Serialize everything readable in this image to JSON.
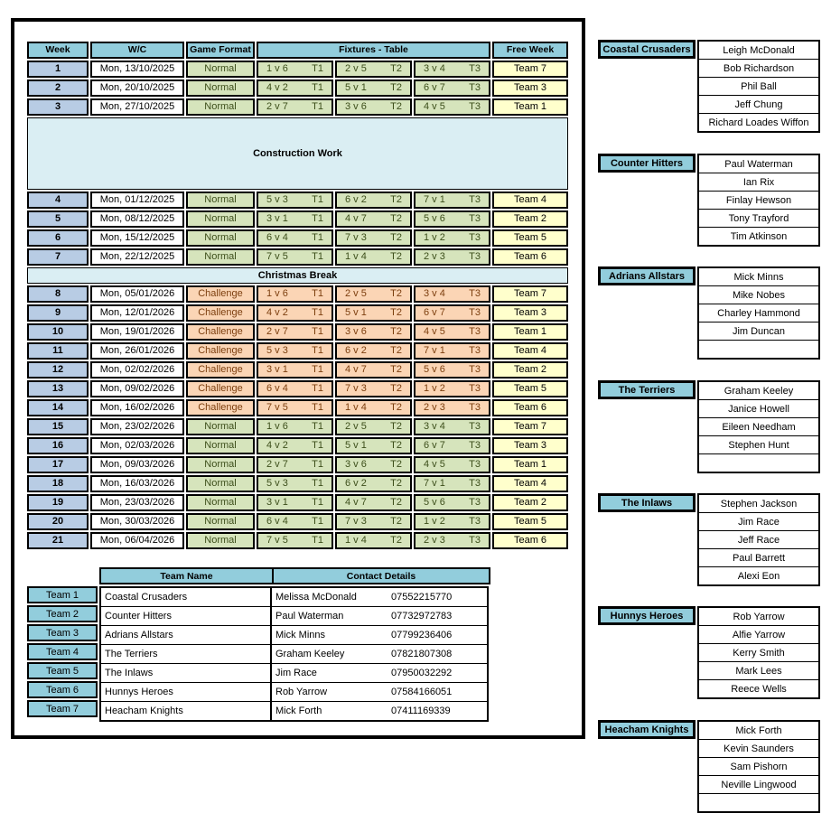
{
  "colors": {
    "header_aqua": "#92CDDC",
    "week_blue": "#B8CCE4",
    "normal_green_bg": "#D6E4BC",
    "normal_green_text": "#3C4E1A",
    "challenge_peach_bg": "#FBD5B5",
    "challenge_brown_text": "#7C3E0E",
    "free_week_yellow": "#FFFFCC",
    "band_pale_blue": "#DAEEF3",
    "border": "#000000"
  },
  "schedule": {
    "headers": {
      "week": "Week",
      "wc": "W/C",
      "format": "Game Format",
      "fixtures": "Fixtures - Table",
      "free": "Free Week"
    },
    "rows": [
      {
        "type": "week",
        "week": "1",
        "date": "Mon, 13/10/2025",
        "format": "Normal",
        "fx": [
          {
            "m": "1 v 6",
            "t": "T1"
          },
          {
            "m": "2 v 5",
            "t": "T2"
          },
          {
            "m": "3 v 4",
            "t": "T3"
          }
        ],
        "free": "Team 7"
      },
      {
        "type": "week",
        "week": "2",
        "date": "Mon, 20/10/2025",
        "format": "Normal",
        "fx": [
          {
            "m": "4 v 2",
            "t": "T1"
          },
          {
            "m": "5 v 1",
            "t": "T2"
          },
          {
            "m": "6 v 7",
            "t": "T3"
          }
        ],
        "free": "Team 3"
      },
      {
        "type": "week",
        "week": "3",
        "date": "Mon, 27/10/2025",
        "format": "Normal",
        "fx": [
          {
            "m": "2 v 7",
            "t": "T1"
          },
          {
            "m": "3 v 6",
            "t": "T2"
          },
          {
            "m": "4 v 5",
            "t": "T3"
          }
        ],
        "free": "Team 1"
      },
      {
        "type": "band",
        "size": "tall",
        "label": "Construction Work"
      },
      {
        "type": "week",
        "week": "4",
        "date": "Mon, 01/12/2025",
        "format": "Normal",
        "fx": [
          {
            "m": "5 v 3",
            "t": "T1"
          },
          {
            "m": "6 v 2",
            "t": "T2"
          },
          {
            "m": "7 v 1",
            "t": "T3"
          }
        ],
        "free": "Team 4"
      },
      {
        "type": "week",
        "week": "5",
        "date": "Mon, 08/12/2025",
        "format": "Normal",
        "fx": [
          {
            "m": "3 v 1",
            "t": "T1"
          },
          {
            "m": "4 v 7",
            "t": "T2"
          },
          {
            "m": "5 v 6",
            "t": "T3"
          }
        ],
        "free": "Team 2"
      },
      {
        "type": "week",
        "week": "6",
        "date": "Mon, 15/12/2025",
        "format": "Normal",
        "fx": [
          {
            "m": "6 v 4",
            "t": "T1"
          },
          {
            "m": "7 v 3",
            "t": "T2"
          },
          {
            "m": "1 v 2",
            "t": "T3"
          }
        ],
        "free": "Team 5"
      },
      {
        "type": "week",
        "week": "7",
        "date": "Mon, 22/12/2025",
        "format": "Normal",
        "fx": [
          {
            "m": "7 v 5",
            "t": "T1"
          },
          {
            "m": "1 v 4",
            "t": "T2"
          },
          {
            "m": "2 v 3",
            "t": "T3"
          }
        ],
        "free": "Team 6"
      },
      {
        "type": "band",
        "size": "short",
        "label": "Christmas Break"
      },
      {
        "type": "week",
        "week": "8",
        "date": "Mon, 05/01/2026",
        "format": "Challenge",
        "fx": [
          {
            "m": "1 v 6",
            "t": "T1"
          },
          {
            "m": "2 v 5",
            "t": "T2"
          },
          {
            "m": "3 v 4",
            "t": "T3"
          }
        ],
        "free": "Team 7"
      },
      {
        "type": "week",
        "week": "9",
        "date": "Mon, 12/01/2026",
        "format": "Challenge",
        "fx": [
          {
            "m": "4 v 2",
            "t": "T1"
          },
          {
            "m": "5 v 1",
            "t": "T2"
          },
          {
            "m": "6 v 7",
            "t": "T3"
          }
        ],
        "free": "Team 3"
      },
      {
        "type": "week",
        "week": "10",
        "date": "Mon, 19/01/2026",
        "format": "Challenge",
        "fx": [
          {
            "m": "2 v 7",
            "t": "T1"
          },
          {
            "m": "3 v 6",
            "t": "T2"
          },
          {
            "m": "4 v 5",
            "t": "T3"
          }
        ],
        "free": "Team 1"
      },
      {
        "type": "week",
        "week": "11",
        "date": "Mon, 26/01/2026",
        "format": "Challenge",
        "fx": [
          {
            "m": "5 v 3",
            "t": "T1"
          },
          {
            "m": "6 v 2",
            "t": "T2"
          },
          {
            "m": "7 v 1",
            "t": "T3"
          }
        ],
        "free": "Team 4"
      },
      {
        "type": "week",
        "week": "12",
        "date": "Mon, 02/02/2026",
        "format": "Challenge",
        "fx": [
          {
            "m": "3 v 1",
            "t": "T1"
          },
          {
            "m": "4 v 7",
            "t": "T2"
          },
          {
            "m": "5 v 6",
            "t": "T3"
          }
        ],
        "free": "Team 2"
      },
      {
        "type": "week",
        "week": "13",
        "date": "Mon, 09/02/2026",
        "format": "Challenge",
        "fx": [
          {
            "m": "6 v 4",
            "t": "T1"
          },
          {
            "m": "7 v 3",
            "t": "T2"
          },
          {
            "m": "1 v 2",
            "t": "T3"
          }
        ],
        "free": "Team 5"
      },
      {
        "type": "week",
        "week": "14",
        "date": "Mon, 16/02/2026",
        "format": "Challenge",
        "fx": [
          {
            "m": "7 v 5",
            "t": "T1"
          },
          {
            "m": "1 v 4",
            "t": "T2"
          },
          {
            "m": "2 v 3",
            "t": "T3"
          }
        ],
        "free": "Team 6"
      },
      {
        "type": "week",
        "week": "15",
        "date": "Mon, 23/02/2026",
        "format": "Normal",
        "fx": [
          {
            "m": "1 v 6",
            "t": "T1"
          },
          {
            "m": "2 v 5",
            "t": "T2"
          },
          {
            "m": "3 v 4",
            "t": "T3"
          }
        ],
        "free": "Team 7"
      },
      {
        "type": "week",
        "week": "16",
        "date": "Mon, 02/03/2026",
        "format": "Normal",
        "fx": [
          {
            "m": "4 v 2",
            "t": "T1"
          },
          {
            "m": "5 v 1",
            "t": "T2"
          },
          {
            "m": "6 v 7",
            "t": "T3"
          }
        ],
        "free": "Team 3"
      },
      {
        "type": "week",
        "week": "17",
        "date": "Mon, 09/03/2026",
        "format": "Normal",
        "fx": [
          {
            "m": "2 v 7",
            "t": "T1"
          },
          {
            "m": "3 v 6",
            "t": "T2"
          },
          {
            "m": "4 v 5",
            "t": "T3"
          }
        ],
        "free": "Team 1"
      },
      {
        "type": "week",
        "week": "18",
        "date": "Mon, 16/03/2026",
        "format": "Normal",
        "fx": [
          {
            "m": "5 v 3",
            "t": "T1"
          },
          {
            "m": "6 v 2",
            "t": "T2"
          },
          {
            "m": "7 v 1",
            "t": "T3"
          }
        ],
        "free": "Team 4"
      },
      {
        "type": "week",
        "week": "19",
        "date": "Mon, 23/03/2026",
        "format": "Normal",
        "fx": [
          {
            "m": "3 v 1",
            "t": "T1"
          },
          {
            "m": "4 v 7",
            "t": "T2"
          },
          {
            "m": "5 v 6",
            "t": "T3"
          }
        ],
        "free": "Team 2"
      },
      {
        "type": "week",
        "week": "20",
        "date": "Mon, 30/03/2026",
        "format": "Normal",
        "fx": [
          {
            "m": "6 v 4",
            "t": "T1"
          },
          {
            "m": "7 v 3",
            "t": "T2"
          },
          {
            "m": "1 v 2",
            "t": "T3"
          }
        ],
        "free": "Team 5"
      },
      {
        "type": "week",
        "week": "21",
        "date": "Mon, 06/04/2026",
        "format": "Normal",
        "fx": [
          {
            "m": "7 v 5",
            "t": "T1"
          },
          {
            "m": "1 v 4",
            "t": "T2"
          },
          {
            "m": "2 v 3",
            "t": "T3"
          }
        ],
        "free": "Team 6"
      }
    ]
  },
  "teams": {
    "col_headers": {
      "name": "Team Name",
      "contact": "Contact Details"
    },
    "rows": [
      {
        "id": "Team 1",
        "name": "Coastal Crusaders",
        "person": "Melissa McDonald",
        "phone": "07552215770"
      },
      {
        "id": "Team 2",
        "name": "Counter Hitters",
        "person": "Paul Waterman",
        "phone": "07732972783"
      },
      {
        "id": "Team 3",
        "name": "Adrians Allstars",
        "person": "Mick Minns",
        "phone": "07799236406"
      },
      {
        "id": "Team 4",
        "name": "The Terriers",
        "person": "Graham Keeley",
        "phone": "07821807308"
      },
      {
        "id": "Team 5",
        "name": "The Inlaws",
        "person": "Jim Race",
        "phone": "07950032292"
      },
      {
        "id": "Team 6",
        "name": "Hunnys Heroes",
        "person": "Rob Yarrow",
        "phone": "07584166051"
      },
      {
        "id": "Team 7",
        "name": "Heacham Knights",
        "person": "Mick Forth",
        "phone": "07411169339"
      }
    ]
  },
  "rosters": [
    {
      "team": "Coastal Crusaders",
      "players": [
        "Leigh McDonald",
        "Bob Richardson",
        "Phil Ball",
        "Jeff Chung",
        "Richard Loades Wiffon"
      ]
    },
    {
      "team": "Counter Hitters",
      "players": [
        "Paul Waterman",
        "Ian Rix",
        "Finlay Hewson",
        "Tony Trayford",
        "Tim Atkinson"
      ]
    },
    {
      "team": "Adrians Allstars",
      "players": [
        "Mick Minns",
        "Mike Nobes",
        "Charley Hammond",
        "Jim Duncan",
        ""
      ]
    },
    {
      "team": "The Terriers",
      "players": [
        "Graham Keeley",
        "Janice Howell",
        "Eileen Needham",
        "Stephen Hunt",
        ""
      ]
    },
    {
      "team": "The Inlaws",
      "players": [
        "Stephen Jackson",
        "Jim Race",
        "Jeff Race",
        "Paul Barrett",
        "Alexi Eon"
      ]
    },
    {
      "team": "Hunnys Heroes",
      "players": [
        "Rob Yarrow",
        "Alfie Yarrow",
        "Kerry Smith",
        "Mark Lees",
        "Reece Wells"
      ]
    },
    {
      "team": "Heacham Knights",
      "players": [
        "Mick Forth",
        "Kevin Saunders",
        "Sam Pishorn",
        "Neville Lingwood",
        ""
      ]
    }
  ]
}
